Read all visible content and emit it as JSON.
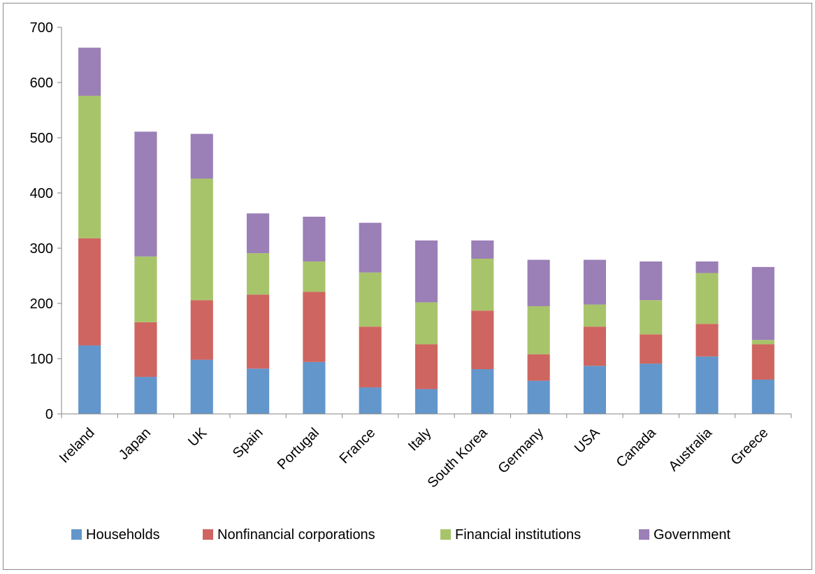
{
  "chart_data": {
    "type": "bar",
    "stacked": true,
    "title": "",
    "xlabel": "",
    "ylabel": "",
    "ylim": [
      0,
      700
    ],
    "yticks": [
      0,
      100,
      200,
      300,
      400,
      500,
      600,
      700
    ],
    "grid": false,
    "legend_position": "bottom",
    "categories": [
      "Ireland",
      "Japan",
      "UK",
      "Spain",
      "Portugal",
      "France",
      "Italy",
      "South Korea",
      "Germany",
      "USA",
      "Canada",
      "Australia",
      "Greece"
    ],
    "series": [
      {
        "name": "Households",
        "color": "#6396cb",
        "values": [
          124,
          67,
          98,
          82,
          94,
          48,
          45,
          81,
          60,
          87,
          91,
          104,
          62
        ]
      },
      {
        "name": "Nonfinancial corporations",
        "color": "#cf6560",
        "values": [
          194,
          99,
          108,
          134,
          127,
          110,
          81,
          106,
          48,
          71,
          53,
          59,
          64
        ]
      },
      {
        "name": "Financial institutions",
        "color": "#a8c46a",
        "values": [
          258,
          119,
          220,
          75,
          55,
          98,
          76,
          94,
          87,
          40,
          62,
          92,
          8
        ]
      },
      {
        "name": "Government",
        "color": "#9b7fb7",
        "values": [
          87,
          226,
          81,
          72,
          81,
          90,
          112,
          33,
          84,
          81,
          70,
          21,
          132
        ]
      }
    ]
  }
}
